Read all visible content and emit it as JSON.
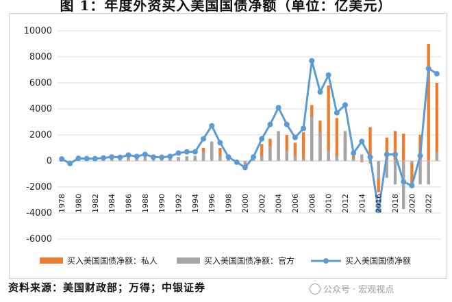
{
  "title": "图 1：年度外资买入美国国债净额（单位：亿美元）",
  "source": "资料来源：美国财政部；万得；中银证券",
  "watermark": "公众号 · 宏观视点",
  "chart_data": {
    "type": "bar",
    "categories": [
      "1978",
      "1979",
      "1980",
      "1981",
      "1982",
      "1983",
      "1984",
      "1985",
      "1986",
      "1987",
      "1988",
      "1989",
      "1990",
      "1991",
      "1992",
      "1993",
      "1994",
      "1995",
      "1996",
      "1997",
      "1998",
      "1999",
      "2000",
      "2001",
      "2002",
      "2003",
      "2004",
      "2005",
      "2006",
      "2007",
      "2008",
      "2009",
      "2010",
      "2011",
      "2012",
      "2013",
      "2014",
      "2015",
      "2016",
      "2017",
      "2018",
      "2019",
      "2020",
      "2021",
      "2022",
      "2023"
    ],
    "x_tick_labels": [
      "1978",
      "1980",
      "1982",
      "1984",
      "1986",
      "1988",
      "1990",
      "1992",
      "1994",
      "1996",
      "1998",
      "2000",
      "2002",
      "2004",
      "2006",
      "2008",
      "2010",
      "2012",
      "2014",
      "2016",
      "2018",
      "2020",
      "2022"
    ],
    "series": [
      {
        "name": "买入美国国债净额：私人",
        "type": "bar",
        "color": "#ED7D31",
        "values": [
          50,
          -150,
          150,
          100,
          120,
          180,
          230,
          180,
          250,
          100,
          200,
          100,
          80,
          150,
          300,
          350,
          300,
          1000,
          1200,
          1000,
          100,
          -100,
          -300,
          200,
          1300,
          1700,
          1800,
          2000,
          1400,
          2200,
          4300,
          3100,
          5800,
          3300,
          2000,
          400,
          -100,
          2600,
          -2400,
          1800,
          2300,
          2100,
          -1900,
          2000,
          9000,
          6000
        ]
      },
      {
        "name": "买入美国国债净额：官方",
        "type": "bar",
        "color": "#A5A5A5",
        "values": [
          100,
          -50,
          50,
          80,
          60,
          50,
          80,
          100,
          200,
          250,
          300,
          200,
          200,
          200,
          300,
          350,
          400,
          700,
          1500,
          400,
          200,
          50,
          -200,
          100,
          400,
          1100,
          2300,
          800,
          400,
          200,
          3400,
          2200,
          800,
          400,
          2300,
          200,
          500,
          -200,
          -1400,
          -1300,
          -1800,
          -3700,
          -200,
          -1800,
          -1800,
          700
        ]
      },
      {
        "name": "买入美国国债净额",
        "type": "line",
        "color": "#5B9BD5",
        "values": [
          150,
          -200,
          200,
          180,
          180,
          230,
          310,
          280,
          450,
          350,
          500,
          300,
          280,
          350,
          600,
          700,
          700,
          1700,
          2700,
          1400,
          300,
          -100,
          -500,
          300,
          1700,
          2800,
          4100,
          2800,
          1800,
          2500,
          7700,
          5300,
          6600,
          3700,
          4300,
          600,
          1500,
          300,
          -3800,
          500,
          500,
          -1600,
          -1900,
          400,
          7100,
          6700
        ]
      }
    ],
    "ylim": [
      -6000,
      10000
    ],
    "y_ticks": [
      -6000,
      -4000,
      -2000,
      0,
      2000,
      4000,
      6000,
      8000,
      10000
    ],
    "xlabel": "",
    "ylabel": "",
    "legend_position": "bottom"
  }
}
